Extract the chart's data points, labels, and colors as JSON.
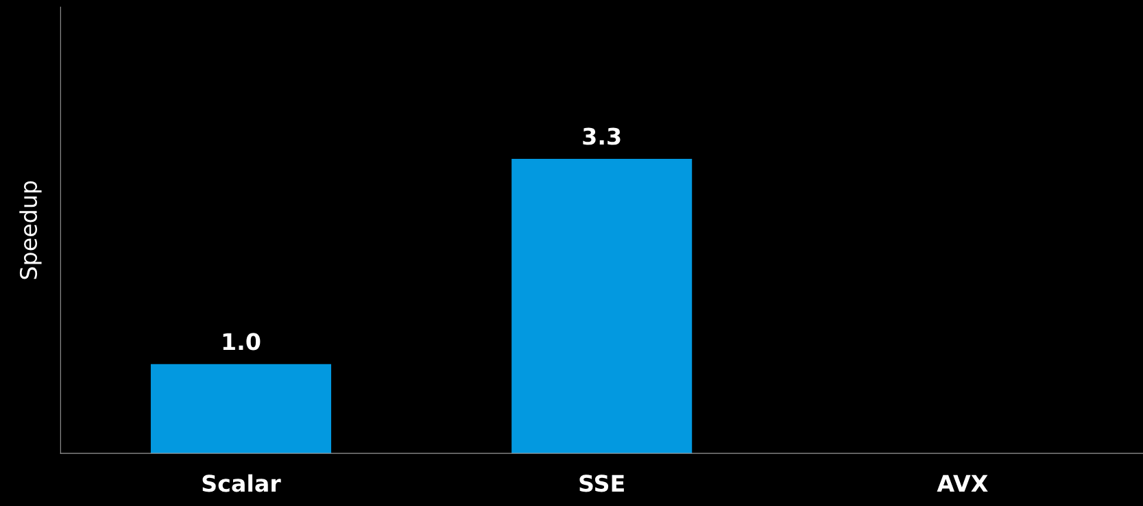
{
  "chart_data": {
    "type": "bar",
    "ylabel": "Speedup",
    "categories": [
      "Scalar",
      "SSE",
      "AVX"
    ],
    "values": [
      1.0,
      3.3,
      null
    ],
    "value_labels": [
      "1.0",
      "3.3",
      null
    ],
    "color": "#0399e0",
    "ylim": [
      0,
      5
    ],
    "grid": false,
    "legend": false
  }
}
